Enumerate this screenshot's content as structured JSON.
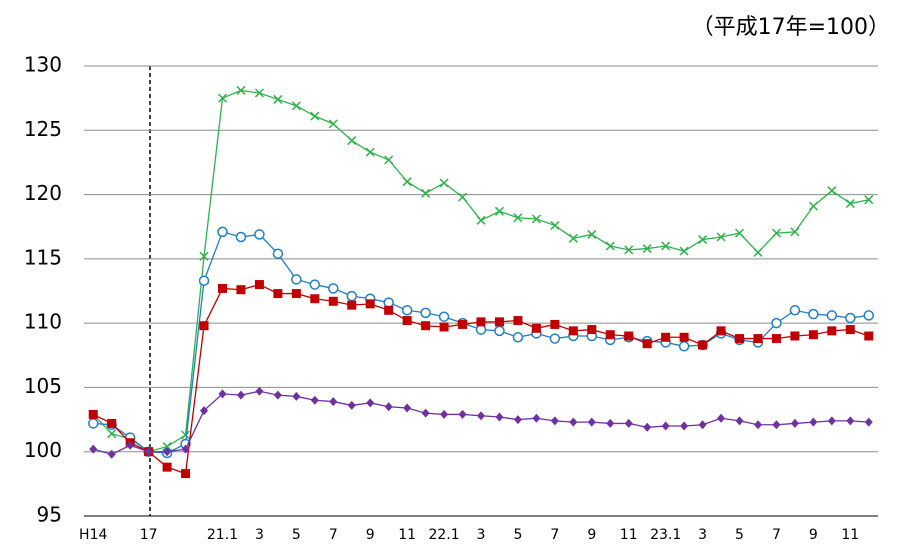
{
  "chart_data": {
    "type": "line",
    "annotation": "（平成17年=100）",
    "categories": [
      "H14",
      null,
      null,
      "17",
      null,
      null,
      null,
      "21.1",
      null,
      "3",
      null,
      "5",
      null,
      "7",
      null,
      "9",
      null,
      "11",
      null,
      "22.1",
      null,
      "3",
      null,
      "5",
      null,
      "7",
      null,
      "9",
      null,
      "11",
      null,
      "23.1",
      null,
      "3",
      null,
      "5",
      null,
      "7",
      null,
      "9",
      null,
      "11",
      null
    ],
    "ylim": [
      95,
      130
    ],
    "yticks": [
      95,
      100,
      105,
      110,
      115,
      120,
      125,
      130
    ],
    "grid": true,
    "series": [
      {
        "color": "#2db34a",
        "marker": "x",
        "values": [
          102.9,
          101.4,
          101.0,
          100.0,
          100.4,
          101.3,
          115.2,
          127.5,
          128.1,
          127.9,
          127.4,
          126.9,
          126.1,
          125.5,
          124.2,
          123.3,
          122.7,
          121.0,
          120.1,
          120.9,
          119.8,
          118.0,
          118.7,
          118.2,
          118.1,
          117.6,
          116.6,
          116.9,
          116.0,
          115.7,
          115.8,
          116.0,
          115.6,
          116.5,
          116.7,
          117.0,
          115.5,
          117.0,
          117.1,
          119.1,
          120.3,
          119.3,
          119.6
        ]
      },
      {
        "color": "#1f7fc4",
        "marker": "circle",
        "values": [
          102.2,
          102.1,
          101.1,
          100.0,
          99.9,
          100.6,
          113.3,
          117.1,
          116.7,
          116.9,
          115.4,
          113.4,
          113.0,
          112.7,
          112.1,
          111.9,
          111.6,
          111.0,
          110.8,
          110.5,
          110.0,
          109.5,
          109.4,
          108.9,
          109.2,
          108.8,
          109.0,
          109.0,
          108.7,
          108.9,
          108.6,
          108.5,
          108.2,
          108.3,
          109.2,
          108.7,
          108.5,
          110.0,
          111.0,
          110.7,
          110.6,
          110.4,
          110.6
        ]
      },
      {
        "color": "#c00000",
        "marker": "square",
        "values": [
          102.9,
          102.2,
          100.7,
          100.0,
          98.8,
          98.3,
          109.8,
          112.7,
          112.6,
          113.0,
          112.3,
          112.3,
          111.9,
          111.7,
          111.4,
          111.5,
          111.0,
          110.2,
          109.8,
          109.7,
          109.9,
          110.1,
          110.1,
          110.2,
          109.6,
          109.9,
          109.4,
          109.5,
          109.1,
          109.0,
          108.4,
          108.9,
          108.9,
          108.3,
          109.4,
          108.8,
          108.8,
          108.8,
          109.0,
          109.1,
          109.4,
          109.5,
          109.0
        ]
      },
      {
        "color": "#7030a0",
        "marker": "diamond",
        "values": [
          100.2,
          99.8,
          100.5,
          100.0,
          100.0,
          100.2,
          103.2,
          104.5,
          104.4,
          104.7,
          104.4,
          104.3,
          104.0,
          103.9,
          103.6,
          103.8,
          103.5,
          103.4,
          103.0,
          102.9,
          102.9,
          102.8,
          102.7,
          102.5,
          102.6,
          102.4,
          102.3,
          102.3,
          102.2,
          102.2,
          101.9,
          102.0,
          102.0,
          102.1,
          102.6,
          102.4,
          102.1,
          102.1,
          102.2,
          102.3,
          102.4,
          102.4,
          102.3
        ]
      }
    ]
  }
}
